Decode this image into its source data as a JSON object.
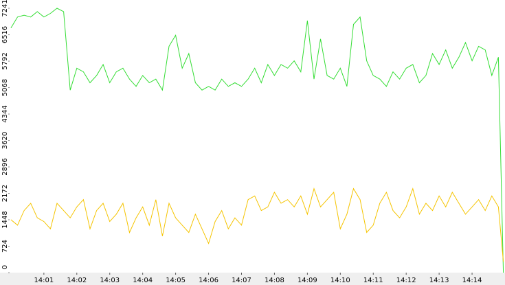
{
  "chart_data": {
    "type": "line",
    "x": [
      0,
      0.2,
      0.4,
      0.6,
      0.8,
      1,
      1.2,
      1.4,
      1.6,
      1.8,
      2,
      2.2,
      2.4,
      2.6,
      2.8,
      3,
      3.2,
      3.4,
      3.6,
      3.8,
      4,
      4.2,
      4.4,
      4.6,
      4.8,
      5,
      5.2,
      5.4,
      5.6,
      5.8,
      6,
      6.2,
      6.4,
      6.6,
      6.8,
      7,
      7.2,
      7.4,
      7.6,
      7.8,
      8,
      8.2,
      8.4,
      8.6,
      8.8,
      9,
      9.2,
      9.4,
      9.6,
      9.8,
      10,
      10.2,
      10.4,
      10.6,
      10.8,
      11,
      11.2,
      11.4,
      11.6,
      11.8,
      12,
      12.2,
      12.4,
      12.6,
      12.8,
      13,
      13.2,
      13.4,
      13.6,
      13.8,
      14,
      14.2,
      14.4,
      14.6,
      14.8,
      14.95
    ],
    "series": [
      {
        "color": "#33dd33",
        "values": [
          6700,
          7000,
          7050,
          7000,
          7150,
          7000,
          7100,
          7241,
          7150,
          5000,
          5600,
          5500,
          5200,
          5400,
          5700,
          5200,
          5500,
          5600,
          5300,
          5100,
          5400,
          5200,
          5300,
          5000,
          6200,
          6500,
          5600,
          6000,
          5200,
          5000,
          5100,
          5000,
          5300,
          5100,
          5200,
          5100,
          5300,
          5600,
          5200,
          5700,
          5400,
          5700,
          5600,
          5800,
          5500,
          6900,
          5300,
          6400,
          5400,
          5300,
          5600,
          5100,
          6800,
          7000,
          5800,
          5400,
          5300,
          5100,
          5500,
          5300,
          5600,
          5700,
          5200,
          5400,
          6000,
          5700,
          6100,
          5600,
          5900,
          6300,
          5800,
          6200,
          6100,
          5400,
          5900,
          0
        ]
      },
      {
        "color": "#f5c400",
        "values": [
          1450,
          1300,
          1700,
          1900,
          1500,
          1400,
          1200,
          1900,
          1700,
          1500,
          1800,
          2000,
          1200,
          1700,
          1900,
          1400,
          1600,
          1900,
          1100,
          1500,
          1800,
          1300,
          2000,
          1000,
          1900,
          1500,
          1300,
          1100,
          1600,
          1200,
          800,
          1400,
          1700,
          1200,
          1500,
          1300,
          2000,
          2100,
          1700,
          1800,
          2200,
          1900,
          2000,
          1800,
          2100,
          1600,
          2300,
          1800,
          2000,
          2200,
          1200,
          1600,
          2300,
          2000,
          1100,
          1300,
          1900,
          2200,
          1700,
          1500,
          1800,
          2300,
          1600,
          1900,
          1700,
          2100,
          1800,
          2200,
          1900,
          1600,
          1800,
          2000,
          1700,
          2100,
          1800,
          300
        ]
      }
    ],
    "xlim": [
      -0.04,
      15
    ],
    "xticks": [
      {
        "value": 1,
        "label": "14:01"
      },
      {
        "value": 2,
        "label": "14:02"
      },
      {
        "value": 3,
        "label": "14:03"
      },
      {
        "value": 4,
        "label": "14:04"
      },
      {
        "value": 5,
        "label": "14:05"
      },
      {
        "value": 6,
        "label": "14:06"
      },
      {
        "value": 7,
        "label": "14:07"
      },
      {
        "value": 8,
        "label": "14:08"
      },
      {
        "value": 9,
        "label": "14:09"
      },
      {
        "value": 10,
        "label": "14:10"
      },
      {
        "value": 11,
        "label": "14:11"
      },
      {
        "value": 12,
        "label": "14:12"
      },
      {
        "value": 13,
        "label": "14:13"
      },
      {
        "value": 14,
        "label": "14:14"
      }
    ],
    "ylim": [
      0,
      7467
    ],
    "yticks": [
      0,
      724,
      1448,
      2172,
      2896,
      3620,
      4344,
      5068,
      5792,
      6516,
      7241
    ]
  }
}
